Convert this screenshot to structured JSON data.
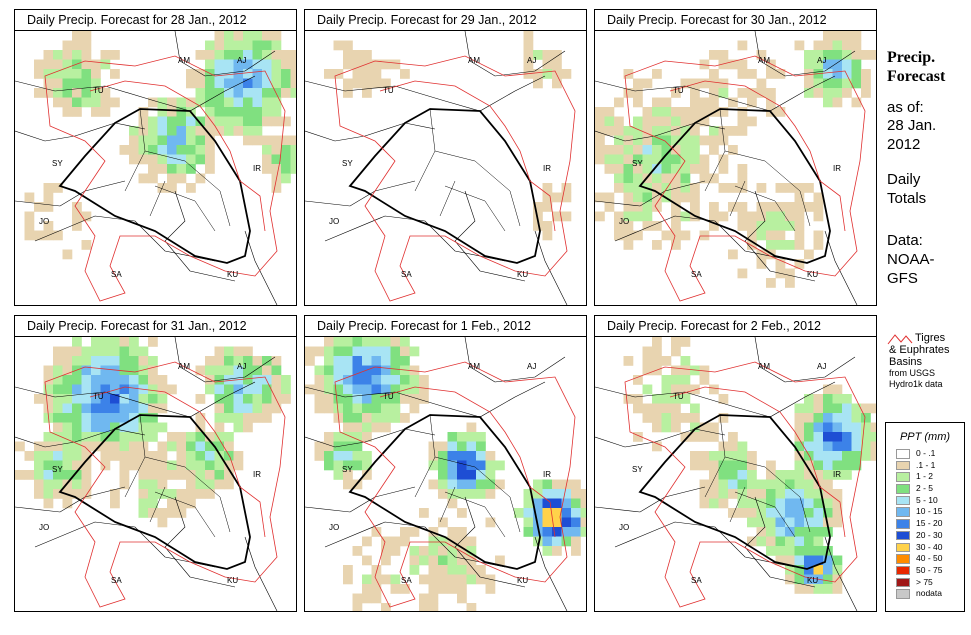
{
  "panels": [
    {
      "title": "Daily Precip. Forecast for  28 Jan., 2012"
    },
    {
      "title": "Daily Precip. Forecast for  29 Jan., 2012"
    },
    {
      "title": "Daily Precip. Forecast for  30 Jan., 2012"
    },
    {
      "title": "Daily Precip. Forecast for  31 Jan., 2012"
    },
    {
      "title": "Daily Precip. Forecast for  1 Feb., 2012"
    },
    {
      "title": "Daily Precip. Forecast for  2 Feb., 2012"
    }
  ],
  "map_labels": [
    "AM",
    "AJ",
    "TU",
    "SY",
    "IR",
    "JO",
    "SA",
    "KU"
  ],
  "side": {
    "title_line1": "Precip.",
    "title_line2": "Forecast",
    "asof": "as of:",
    "date_line1": "28 Jan.",
    "date_line2": "2012",
    "daily1": "Daily",
    "daily2": "Totals",
    "data1": "Data:",
    "data2": "NOAA-",
    "data3": "GFS"
  },
  "basin_legend": {
    "line1": "Tigres",
    "line2": "& Euphrates",
    "line3": "Basins",
    "line4": "from USGS",
    "line5": "Hydro1k data",
    "line_color": "#e03030"
  },
  "ppt_legend": {
    "title": "PPT (mm)",
    "items": [
      {
        "label": "0 - .1",
        "color": "#ffffff"
      },
      {
        "label": ".1 - 1",
        "color": "#e8d4b0"
      },
      {
        "label": "1 - 2",
        "color": "#b8f0a0"
      },
      {
        "label": "2 - 5",
        "color": "#80e080"
      },
      {
        "label": "5 - 10",
        "color": "#a8e4f4"
      },
      {
        "label": "10 - 15",
        "color": "#70b8f0"
      },
      {
        "label": "15 - 20",
        "color": "#3c82e8"
      },
      {
        "label": "20 - 30",
        "color": "#1e4ed4"
      },
      {
        "label": "30 - 40",
        "color": "#ffd24a"
      },
      {
        "label": "40 - 50",
        "color": "#ff8c00"
      },
      {
        "label": "50 - 75",
        "color": "#e82800"
      },
      {
        "label": "> 75",
        "color": "#a01818"
      },
      {
        "label": "nodata",
        "color": "#c8c8c8"
      }
    ]
  }
}
